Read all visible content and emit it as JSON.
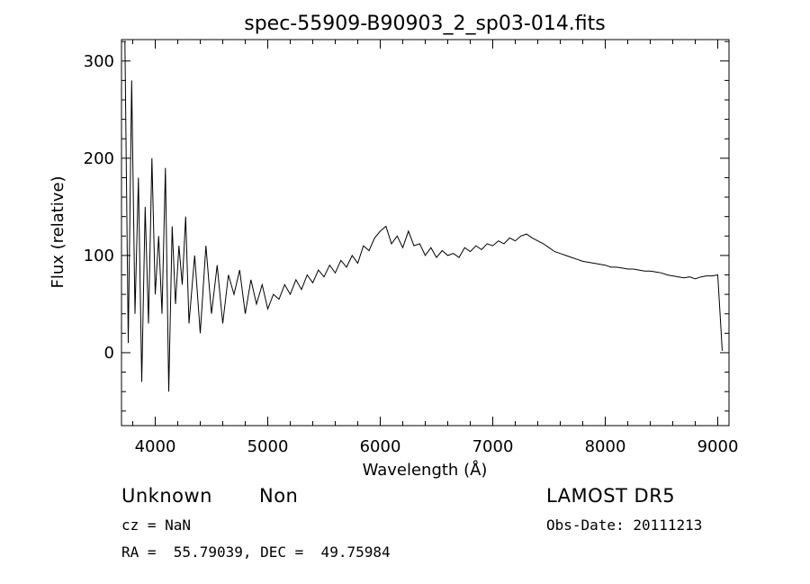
{
  "chart_data": {
    "type": "line",
    "title": "spec-55909-B90903_2_sp03-014.fits",
    "xlabel": "Wavelength (Å)",
    "ylabel": "Flux (relative)",
    "xlim": [
      3700,
      9100
    ],
    "ylim": [
      -75,
      322
    ],
    "xticks": [
      4000,
      5000,
      6000,
      7000,
      8000,
      9000
    ],
    "yticks": [
      0,
      100,
      200,
      300
    ],
    "grid": false,
    "series": [
      {
        "x": [
          3730,
          3760,
          3790,
          3820,
          3850,
          3880,
          3910,
          3940,
          3970,
          4000,
          4030,
          4060,
          4090,
          4120,
          4150,
          4180,
          4210,
          4240,
          4270,
          4300,
          4350,
          4400,
          4450,
          4500,
          4550,
          4600,
          4650,
          4700,
          4750,
          4800,
          4850,
          4900,
          4950,
          5000,
          5050,
          5100,
          5150,
          5200,
          5250,
          5300,
          5350,
          5400,
          5450,
          5500,
          5550,
          5600,
          5650,
          5700,
          5750,
          5800,
          5850,
          5900,
          5950,
          6000,
          6050,
          6100,
          6150,
          6200,
          6250,
          6300,
          6350,
          6400,
          6450,
          6500,
          6550,
          6600,
          6650,
          6700,
          6750,
          6800,
          6850,
          6900,
          6950,
          7000,
          7050,
          7100,
          7150,
          7200,
          7250,
          7300,
          7350,
          7400,
          7450,
          7500,
          7550,
          7600,
          7650,
          7700,
          7750,
          7800,
          7850,
          7900,
          7950,
          8000,
          8050,
          8100,
          8150,
          8200,
          8250,
          8300,
          8350,
          8400,
          8450,
          8500,
          8550,
          8600,
          8650,
          8700,
          8750,
          8800,
          8850,
          8900,
          8950,
          9000,
          9040
        ],
        "y": [
          320,
          10,
          280,
          40,
          180,
          -30,
          150,
          30,
          200,
          60,
          120,
          40,
          190,
          -40,
          130,
          50,
          110,
          70,
          140,
          30,
          100,
          20,
          110,
          40,
          90,
          30,
          80,
          60,
          85,
          40,
          75,
          50,
          70,
          45,
          60,
          55,
          70,
          60,
          75,
          65,
          80,
          72,
          85,
          78,
          90,
          82,
          95,
          88,
          100,
          92,
          110,
          105,
          118,
          125,
          130,
          112,
          120,
          108,
          125,
          110,
          112,
          100,
          108,
          98,
          105,
          100,
          102,
          98,
          108,
          104,
          110,
          106,
          112,
          110,
          115,
          112,
          118,
          115,
          120,
          122,
          118,
          115,
          112,
          108,
          104,
          102,
          100,
          98,
          96,
          94,
          93,
          92,
          91,
          90,
          88,
          88,
          87,
          86,
          86,
          85,
          84,
          84,
          83,
          82,
          80,
          79,
          78,
          77,
          78,
          76,
          78,
          79,
          79,
          80,
          2
        ]
      }
    ]
  },
  "annotations": {
    "object_class": "Unknown",
    "object_subclass": "Non",
    "survey": "LAMOST DR5",
    "redshift": "cz = NaN",
    "obs_date": "Obs-Date: 20111213",
    "coords": "RA =  55.79039, DEC =  49.75984"
  }
}
